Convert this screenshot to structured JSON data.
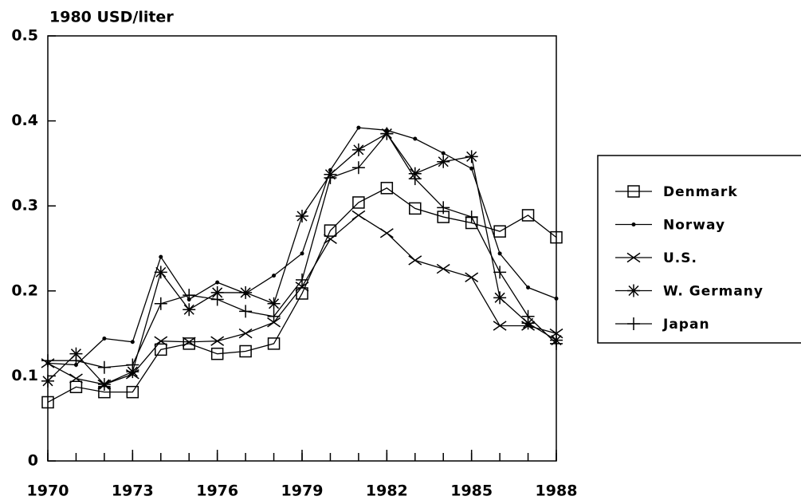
{
  "chart_data": {
    "type": "line",
    "y_label": "1980 USD/liter",
    "x": [
      1970,
      1971,
      1972,
      1973,
      1974,
      1975,
      1976,
      1977,
      1978,
      1979,
      1980,
      1981,
      1982,
      1983,
      1984,
      1985,
      1986,
      1987,
      1988
    ],
    "xlim": [
      1970,
      1988
    ],
    "xticks": [
      1970,
      1973,
      1976,
      1979,
      1982,
      1985,
      1988
    ],
    "ylim": [
      0,
      0.5
    ],
    "yticks": [
      0,
      0.1,
      0.2,
      0.3,
      0.4,
      0.5
    ],
    "grid": false,
    "legend_position": "right",
    "series": [
      {
        "name": "Denmark",
        "color": "#000000",
        "marker": "square",
        "values": [
          0.069,
          0.087,
          0.081,
          0.081,
          0.131,
          0.138,
          0.126,
          0.129,
          0.138,
          0.197,
          0.271,
          0.304,
          0.321,
          0.297,
          0.287,
          0.28,
          0.27,
          0.289,
          0.263
        ]
      },
      {
        "name": "Norway",
        "color": "#000000",
        "marker": "dot",
        "values": [
          0.115,
          0.113,
          0.144,
          0.14,
          0.24,
          0.19,
          0.21,
          0.197,
          0.218,
          0.244,
          0.342,
          0.392,
          0.389,
          0.379,
          0.362,
          0.344,
          0.244,
          0.204,
          0.191
        ]
      },
      {
        "name": "U.S.",
        "color": "#000000",
        "marker": "x",
        "values": [
          0.115,
          0.097,
          0.09,
          0.102,
          0.141,
          0.14,
          0.141,
          0.15,
          0.163,
          0.205,
          0.261,
          0.289,
          0.268,
          0.236,
          0.226,
          0.216,
          0.159,
          0.159,
          0.15
        ]
      },
      {
        "name": "W. Germany",
        "color": "#000000",
        "marker": "asterisk",
        "values": [
          0.094,
          0.126,
          0.09,
          0.105,
          0.222,
          0.178,
          0.198,
          0.198,
          0.185,
          0.288,
          0.337,
          0.366,
          0.385,
          0.338,
          0.352,
          0.358,
          0.192,
          0.162,
          0.142
        ]
      },
      {
        "name": "Japan",
        "color": "#000000",
        "marker": "plus",
        "values": [
          0.118,
          0.118,
          0.11,
          0.113,
          0.185,
          0.195,
          0.19,
          0.176,
          0.17,
          0.213,
          0.333,
          0.345,
          0.385,
          0.332,
          0.298,
          0.287,
          0.222,
          0.17,
          0.138
        ]
      }
    ]
  }
}
